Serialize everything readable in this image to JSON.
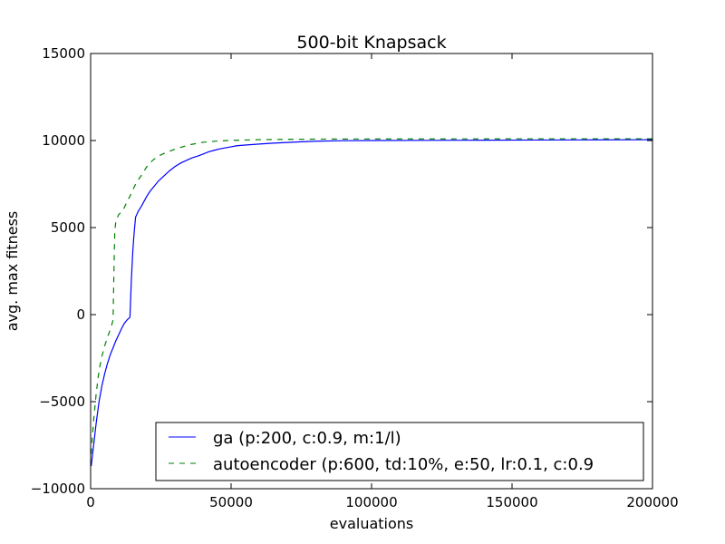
{
  "chart_data": {
    "type": "line",
    "title": "500-bit Knapsack",
    "xlabel": "evaluations",
    "ylabel": "avg. max fitness",
    "xlim": [
      0,
      200000
    ],
    "ylim": [
      -10000,
      15000
    ],
    "xticks": [
      0,
      50000,
      100000,
      150000,
      200000
    ],
    "xtick_labels": [
      "0",
      "50000",
      "100000",
      "150000",
      "200000"
    ],
    "yticks": [
      -10000,
      -5000,
      0,
      5000,
      10000,
      15000
    ],
    "ytick_labels": [
      "−10000",
      "−5000",
      "0",
      "5000",
      "10000",
      "15000"
    ],
    "grid": false,
    "legend_position": "lower-right",
    "series": [
      {
        "name": "ga (p:200, c:0.9, m:1/l)",
        "color": "#0000ff",
        "style": "solid",
        "x": [
          200,
          1000,
          2000,
          3000,
          4000,
          5000,
          6000,
          7000,
          8000,
          9000,
          10000,
          11000,
          12000,
          13000,
          14000,
          14500,
          15000,
          15300,
          15600,
          16000,
          17000,
          18000,
          19000,
          20000,
          21000,
          22000,
          23000,
          24000,
          25000,
          26000,
          27000,
          28000,
          30000,
          32000,
          34000,
          36000,
          38000,
          40000,
          42000,
          44000,
          46000,
          48000,
          50000,
          52000,
          55000,
          60000,
          65000,
          70000,
          75000,
          80000,
          90000,
          100000,
          120000,
          140000,
          160000,
          180000,
          200000
        ],
        "y": [
          -8700,
          -7600,
          -6200,
          -5000,
          -4100,
          -3400,
          -2800,
          -2300,
          -1900,
          -1500,
          -1150,
          -800,
          -500,
          -300,
          -150,
          2000,
          3600,
          4300,
          4900,
          5600,
          5950,
          6200,
          6500,
          6800,
          7050,
          7250,
          7450,
          7650,
          7800,
          7950,
          8100,
          8250,
          8500,
          8700,
          8850,
          9000,
          9100,
          9220,
          9350,
          9440,
          9520,
          9580,
          9640,
          9700,
          9740,
          9800,
          9850,
          9890,
          9930,
          9960,
          9990,
          10000,
          10010,
          10020,
          10030,
          10040,
          10050
        ]
      },
      {
        "name": "autoencoder (p:600, td:10%, e:50, lr:0.1, c:0.9",
        "color": "#008000",
        "style": "dashed",
        "x": [
          200,
          1000,
          2000,
          3000,
          4000,
          5000,
          6000,
          7000,
          7500,
          8000,
          8300,
          8600,
          9000,
          10000,
          11000,
          12000,
          13000,
          14000,
          15000,
          16000,
          17000,
          18000,
          20000,
          22000,
          24000,
          26000,
          28000,
          30000,
          35000,
          40000,
          45000,
          50000,
          60000,
          70000,
          80000,
          100000,
          120000,
          150000,
          180000,
          200000
        ],
        "y": [
          -8000,
          -6200,
          -4500,
          -3200,
          -2400,
          -1800,
          -1300,
          -850,
          -600,
          -300,
          2500,
          4800,
          5400,
          5750,
          5900,
          6150,
          6500,
          6800,
          7150,
          7500,
          7750,
          7980,
          8500,
          8850,
          9100,
          9250,
          9380,
          9500,
          9750,
          9900,
          9970,
          10010,
          10050,
          10070,
          10080,
          10090,
          10090,
          10100,
          10100,
          10100
        ]
      }
    ]
  }
}
